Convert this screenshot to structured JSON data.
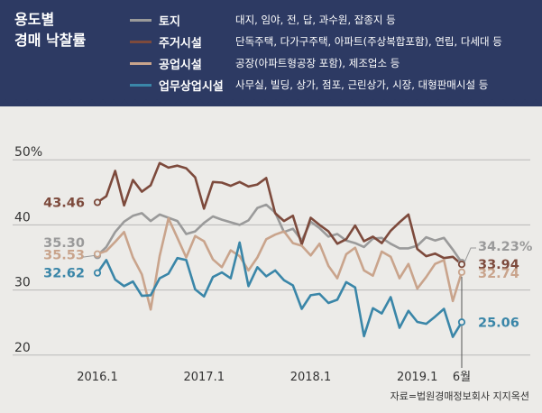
{
  "chart_data": {
    "type": "line",
    "title_lines": [
      "용도별",
      "경매 낙찰률"
    ],
    "title": "용도별 경매 낙찰률",
    "source": "자료=법원경매정보회사 지지옥션",
    "y_ticks": [
      {
        "value": 50,
        "label": "50%"
      },
      {
        "value": 40,
        "label": "40"
      },
      {
        "value": 30,
        "label": "30"
      },
      {
        "value": 20,
        "label": "20"
      }
    ],
    "ylim": [
      19,
      51
    ],
    "x_range": [
      0,
      41
    ],
    "x_ticks": [
      {
        "label": "2016.1",
        "index": 0
      },
      {
        "label": "2017.1",
        "index": 12
      },
      {
        "label": "2018.1",
        "index": 24
      },
      {
        "label": "2019.1",
        "index": 36
      },
      {
        "label": "6월",
        "index": 41
      }
    ],
    "series": [
      {
        "name": "토지",
        "description": "대지, 임야, 전, 답, 과수원, 잡종지 등",
        "color": "#9a9a9a",
        "start_label": "35.30",
        "end_label": "34.23%",
        "values": [
          35.3,
          36.6,
          38.9,
          40.5,
          41.4,
          41.8,
          40.6,
          41.6,
          41.1,
          40.6,
          38.6,
          39.0,
          40.3,
          41.3,
          40.8,
          40.4,
          40.0,
          40.7,
          42.6,
          43.1,
          41.9,
          38.9,
          39.4,
          37.6,
          40.5,
          39.5,
          38.2,
          38.6,
          37.6,
          37.2,
          36.6,
          37.9,
          38.0,
          37.1,
          36.4,
          36.4,
          36.8,
          38.1,
          37.6,
          38.0,
          36.2,
          34.23
        ]
      },
      {
        "name": "주거시설",
        "description": "단독주택, 다가구주택, 아파트(주상복합포함), 연립, 다세대 등",
        "color": "#7d4a3c",
        "start_label": "43.46",
        "end_label": "33.94",
        "values": [
          43.46,
          44.4,
          48.3,
          43.0,
          46.9,
          45.1,
          46.1,
          49.5,
          48.8,
          49.1,
          48.7,
          47.3,
          42.5,
          46.6,
          46.5,
          46.0,
          46.6,
          45.9,
          46.2,
          47.2,
          41.8,
          40.6,
          41.4,
          37.0,
          41.1,
          40.0,
          39.0,
          37.1,
          37.8,
          39.9,
          37.5,
          38.2,
          37.2,
          39.1,
          40.4,
          41.6,
          36.3,
          35.2,
          35.6,
          34.9,
          35.1,
          33.94
        ]
      },
      {
        "name": "공업시설",
        "description": "공장(아파트형공장 포함), 제조업소 등",
        "color": "#c9a48c",
        "start_label": "35.53",
        "end_label": "32.74",
        "values": [
          35.53,
          36.0,
          37.4,
          38.9,
          35.0,
          32.4,
          27.0,
          35.2,
          41.0,
          38.0,
          35.0,
          38.3,
          37.5,
          34.7,
          33.5,
          36.1,
          35.2,
          33.0,
          35.0,
          37.8,
          38.5,
          39.0,
          37.2,
          36.8,
          35.3,
          37.1,
          33.7,
          31.8,
          35.5,
          36.5,
          33.0,
          32.2,
          35.9,
          35.1,
          31.8,
          34.0,
          30.2,
          32.0,
          34.0,
          34.6,
          28.3,
          32.74
        ]
      },
      {
        "name": "업무상업시설",
        "description": "사무실, 빌딩, 상가, 점포, 근린상가, 시장, 대형판매시설 등",
        "color": "#3a86a8",
        "start_label": "32.62",
        "end_label": "25.06",
        "values": [
          32.62,
          34.6,
          31.6,
          30.6,
          31.3,
          29.1,
          29.2,
          31.8,
          32.5,
          34.9,
          34.6,
          30.1,
          29.0,
          32.0,
          32.7,
          31.8,
          37.3,
          30.6,
          33.5,
          32.1,
          33.0,
          31.5,
          30.7,
          27.1,
          29.2,
          29.4,
          28.0,
          28.5,
          31.2,
          30.4,
          22.9,
          27.2,
          26.4,
          28.9,
          24.2,
          26.8,
          25.1,
          24.8,
          25.9,
          27.1,
          22.8,
          25.06
        ]
      }
    ]
  }
}
